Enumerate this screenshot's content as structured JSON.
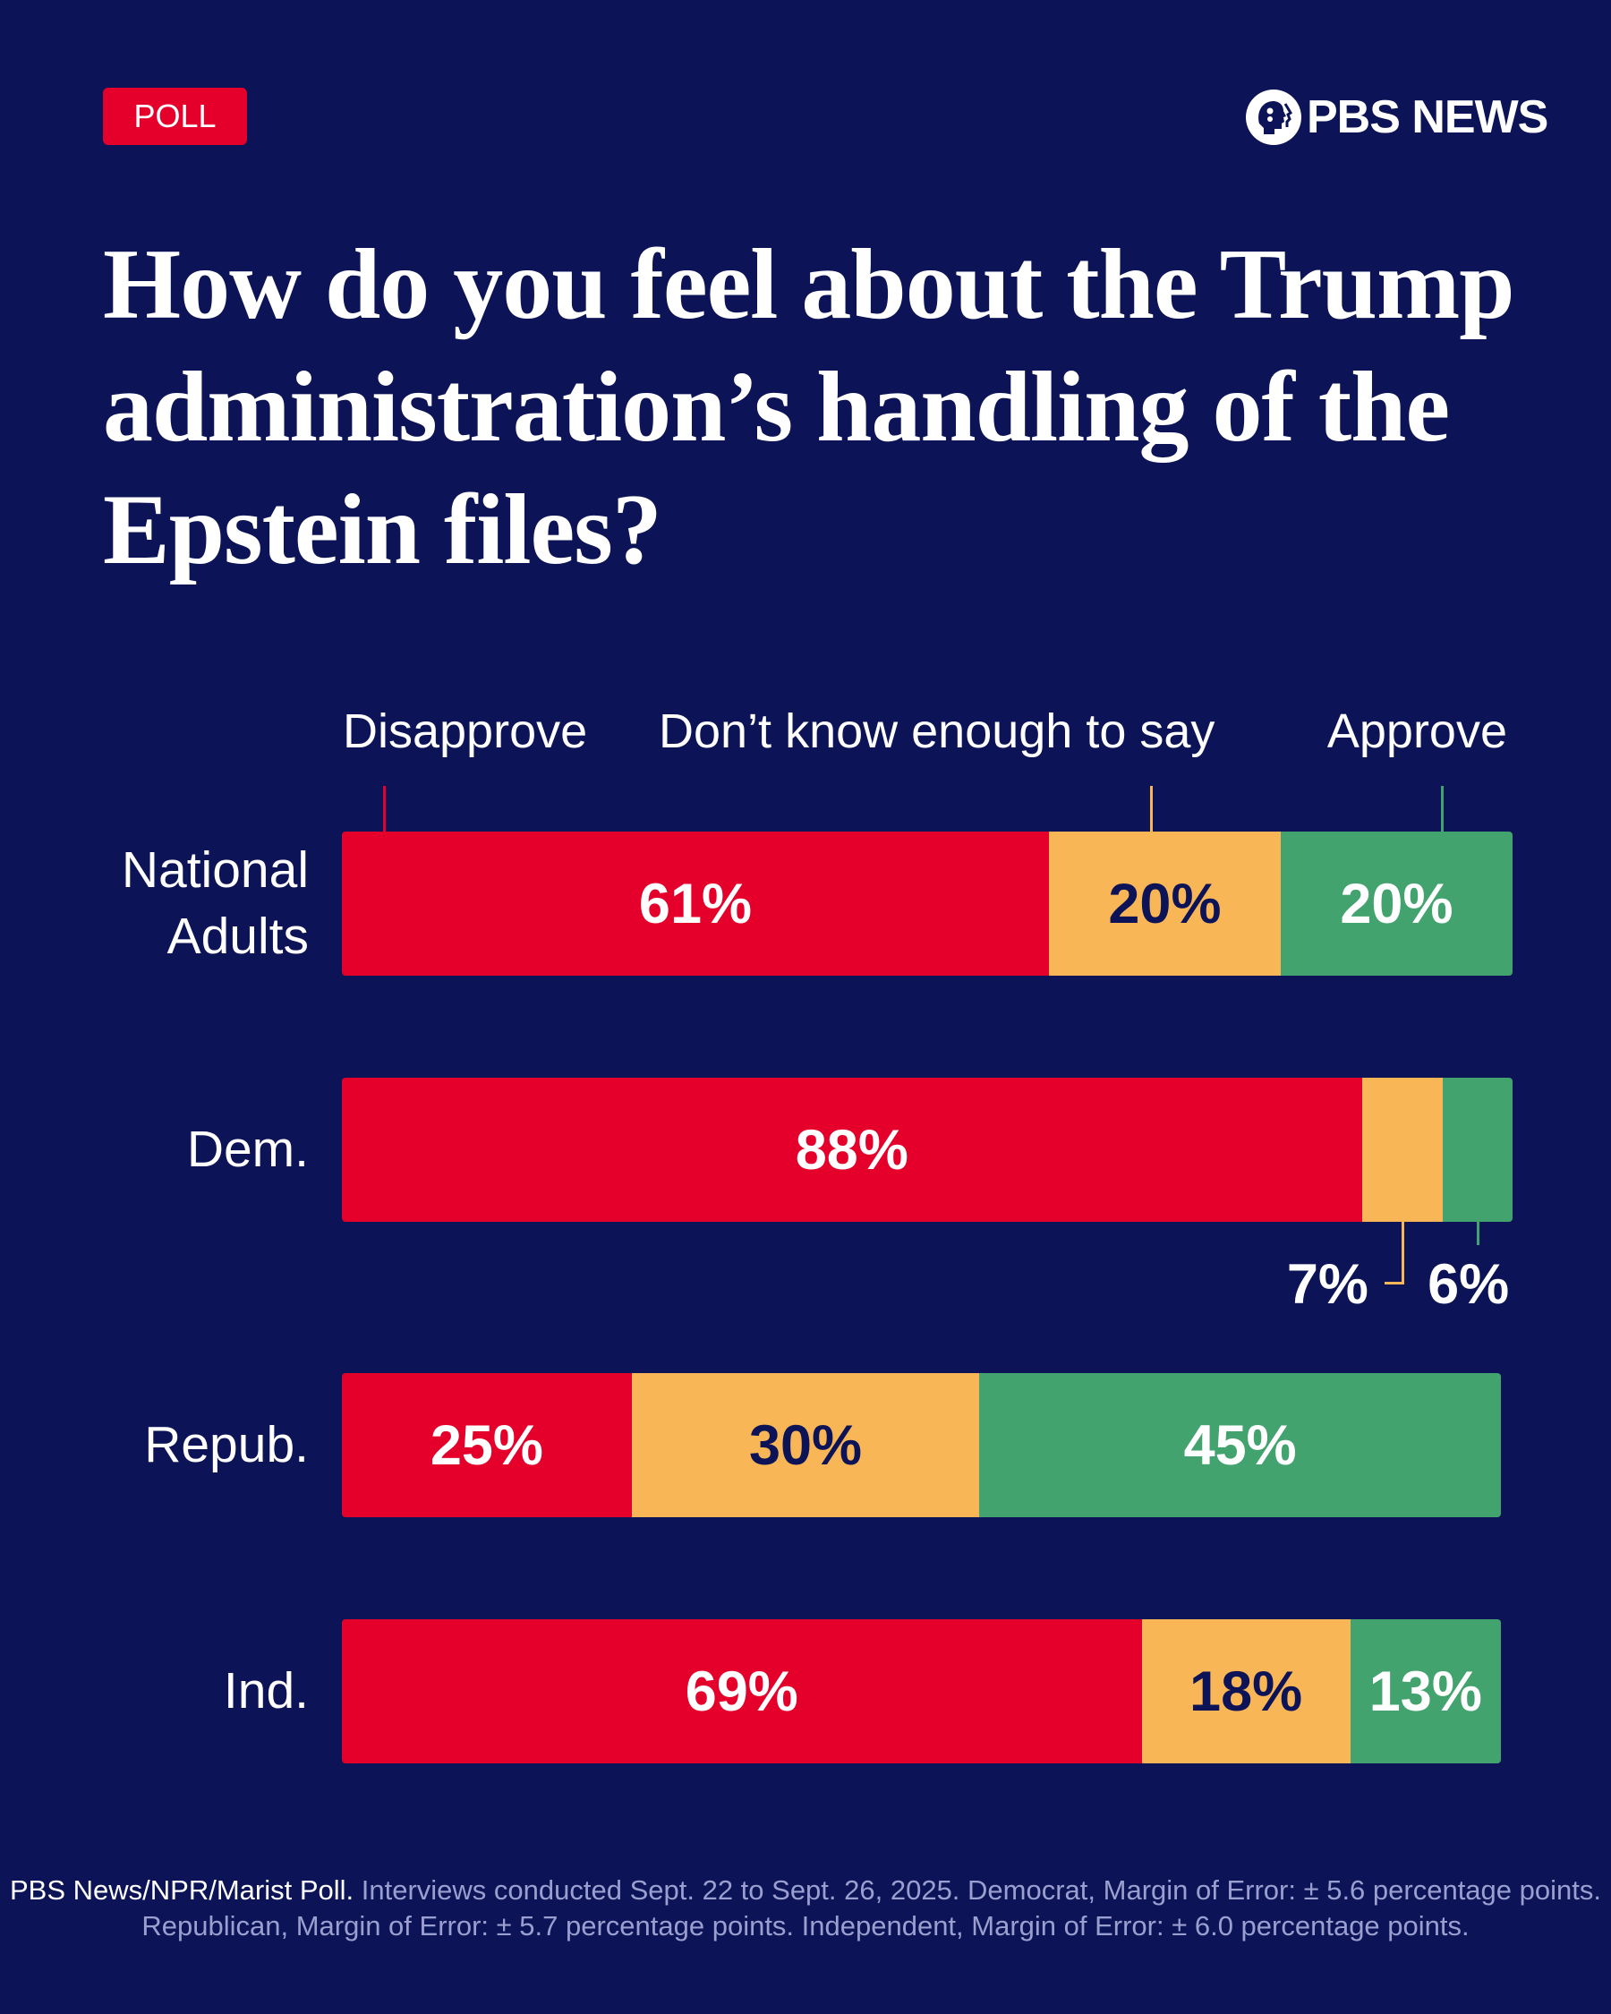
{
  "badge": "POLL",
  "logo": {
    "text": "PBS NEWS",
    "icon": "pbs-head-logo-icon"
  },
  "colors": {
    "background": "#0c1457",
    "disapprove": "#e4002b",
    "dont_know": "#f8b656",
    "approve": "#43a36e"
  },
  "chart_data": {
    "type": "bar",
    "orientation": "horizontal",
    "stacked": true,
    "title": "How do you feel about the Trump administration’s handling of the Epstein files?",
    "categories": [
      "National Adults",
      "Dem.",
      "Repub.",
      "Ind."
    ],
    "series": [
      {
        "name": "Disapprove",
        "values": [
          61,
          88,
          25,
          69
        ],
        "labels": [
          "61%",
          "88%",
          "25%",
          "69%"
        ]
      },
      {
        "name": "Don’t know enough to say",
        "values": [
          20,
          7,
          30,
          18
        ],
        "labels": [
          "20%",
          "7%",
          "30%",
          "18%"
        ]
      },
      {
        "name": "Approve",
        "values": [
          20,
          6,
          45,
          13
        ],
        "labels": [
          "20%",
          "6%",
          "45%",
          "13%"
        ]
      }
    ],
    "legend": "top",
    "grid": false
  },
  "footer": {
    "source": "PBS News/NPR/Marist Poll.",
    "note": " Interviews conducted Sept. 22 to Sept. 26, 2025. Democrat, Margin of Error: ± 5.6 percentage points. Republican, Margin of Error: ± 5.7 percentage points. Independent, Margin of Error: ± 6.0 percentage points."
  }
}
